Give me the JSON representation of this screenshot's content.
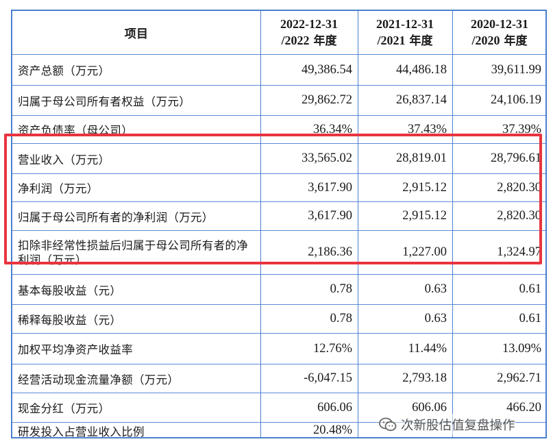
{
  "header": {
    "label": "项目",
    "col1_line1": "2022-12-31",
    "col1_line2_prefix": "/2022",
    "col1_line2_suffix": " 年度",
    "col2_line1": "2021-12-31",
    "col2_line2_prefix": "/2021",
    "col2_line2_suffix": " 年度",
    "col3_line1": "2020-12-31",
    "col3_line2_prefix": "/2020",
    "col3_line2_suffix": " 年度"
  },
  "rows": [
    {
      "label": "资产总额（万元）",
      "v2022": "49,386.54",
      "v2021": "44,486.18",
      "v2020": "39,611.99"
    },
    {
      "label": "归属于母公司所有者权益（万元）",
      "v2022": "29,862.72",
      "v2021": "26,837.14",
      "v2020": "24,106.19"
    },
    {
      "label": "资产负债率（母公司）",
      "v2022": "36.34%",
      "v2021": "37.43%",
      "v2020": "37.39%"
    },
    {
      "label": "营业收入（万元）",
      "v2022": "33,565.02",
      "v2021": "28,819.01",
      "v2020": "28,796.61"
    },
    {
      "label": "净利润（万元）",
      "v2022": "3,617.90",
      "v2021": "2,915.12",
      "v2020": "2,820.30"
    },
    {
      "label": "归属于母公司所有者的净利润（万元）",
      "v2022": "3,617.90",
      "v2021": "2,915.12",
      "v2020": "2,820.30"
    },
    {
      "label": "扣除非经常性损益后归属于母公司所有者的净利润（万元）",
      "v2022": "2,186.36",
      "v2021": "1,227.00",
      "v2020": "1,324.97"
    },
    {
      "label": "基本每股收益（元）",
      "v2022": "0.78",
      "v2021": "0.63",
      "v2020": "0.61"
    },
    {
      "label": "稀释每股收益（元）",
      "v2022": "0.78",
      "v2021": "0.63",
      "v2020": "0.61"
    },
    {
      "label": "加权平均净资产收益率",
      "v2022": "12.76%",
      "v2021": "11.44%",
      "v2020": "13.09%"
    },
    {
      "label": "经营活动现金流量净额（万元）",
      "v2022": "-6,047.15",
      "v2021": "2,793.18",
      "v2020": "2,962.71"
    },
    {
      "label": "现金分红（万元）",
      "v2022": "606.06",
      "v2021": "606.06",
      "v2020": "466.20"
    },
    {
      "label": "研发投入占营业收入比例",
      "v2022": "20.48%",
      "v2021": "",
      "v2020": ""
    }
  ],
  "highlight_color": "#e8343f",
  "border_color": "#4a7fd0",
  "watermark": {
    "text": "次新股估值复盘操作",
    "icon": "wechat-icon"
  }
}
